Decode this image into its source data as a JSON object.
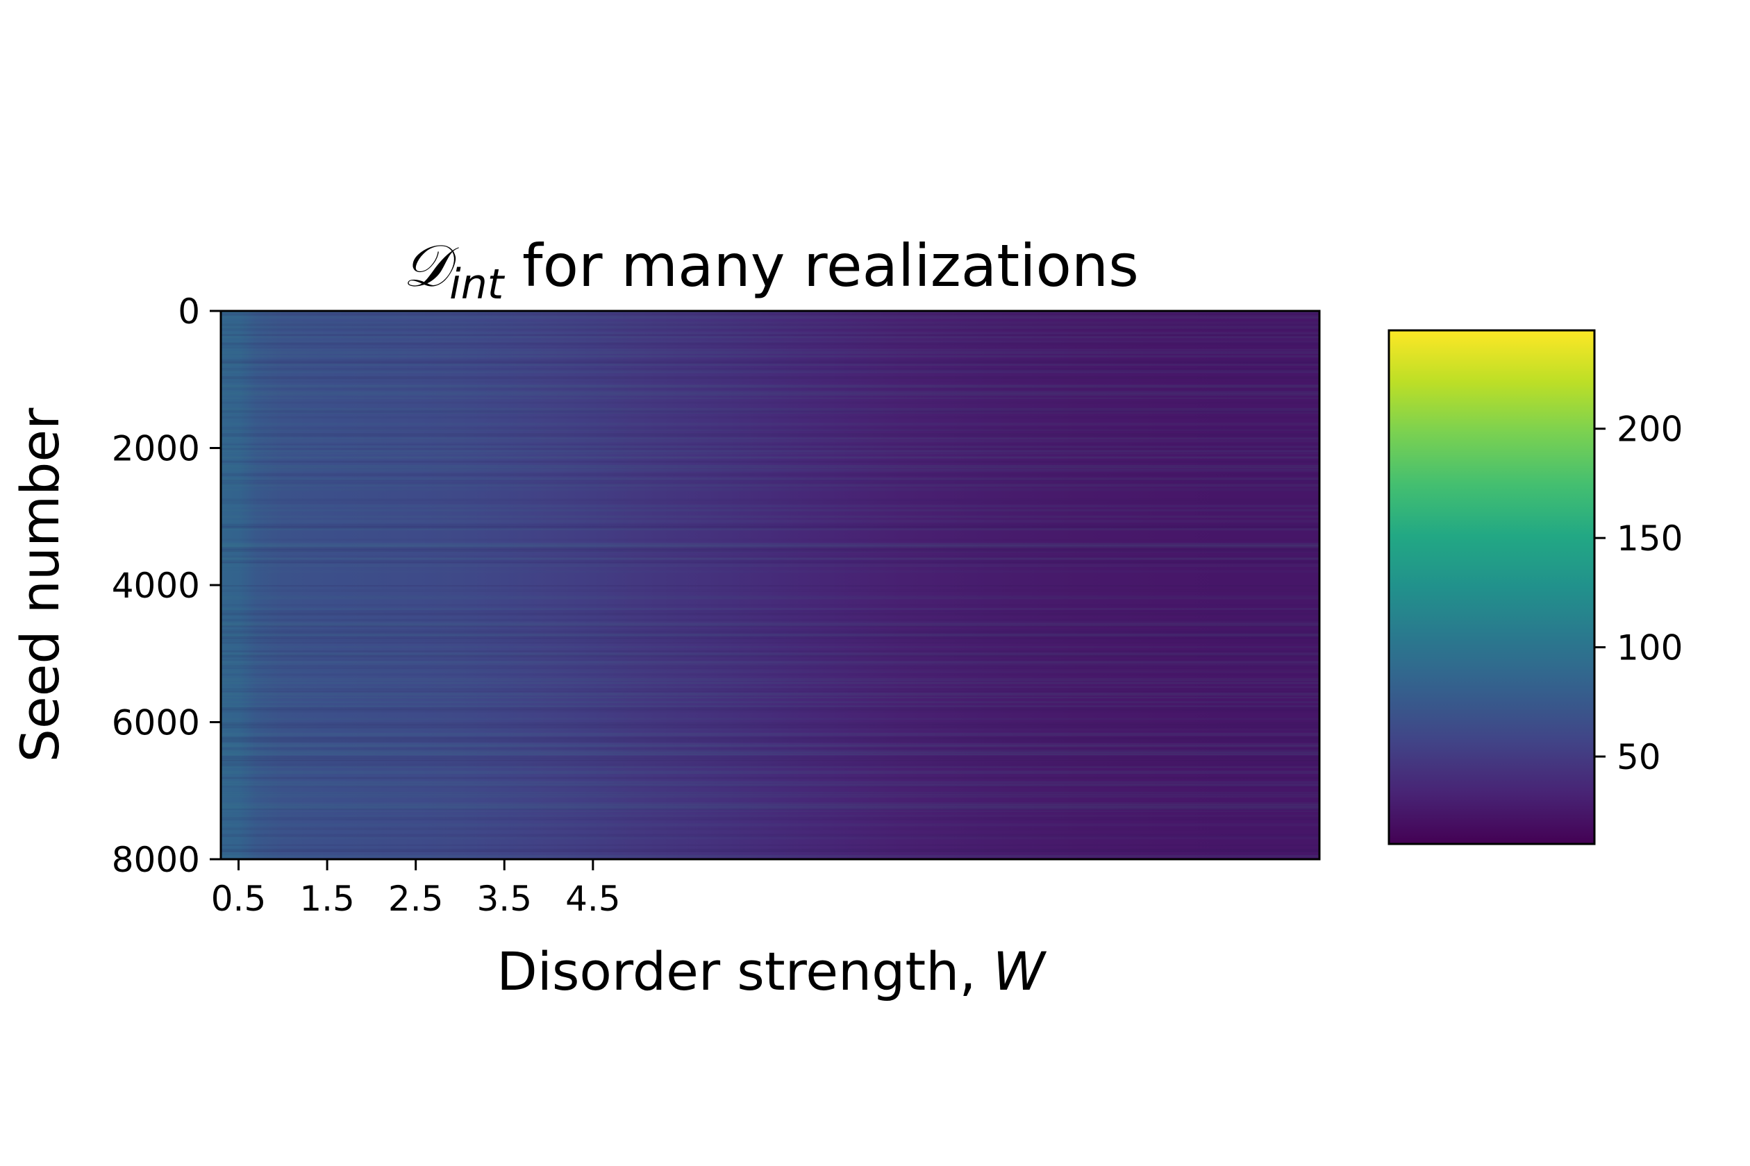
{
  "chart_data": {
    "type": "heatmap",
    "title": {
      "symbol": "𝒟",
      "subscript": "int",
      "rest": " for many realizations"
    },
    "xlabel": {
      "text": "Disorder strength, ",
      "var": "W"
    },
    "ylabel": "Seed number",
    "x_ticks": [
      0.5,
      1.5,
      2.5,
      3.5,
      4.5
    ],
    "x_tick_labels": [
      "0.5",
      "1.5",
      "2.5",
      "3.5",
      "4.5"
    ],
    "xlim": [
      0.3,
      12.7
    ],
    "y_ticks": [
      0,
      2000,
      4000,
      6000,
      8000
    ],
    "y_tick_labels": [
      "0",
      "2000",
      "4000",
      "6000",
      "8000"
    ],
    "ylim": [
      8000,
      0
    ],
    "columns_w": [
      0.3,
      0.5,
      0.7,
      1.0,
      1.5,
      2.0,
      2.5,
      3.0,
      3.5,
      4.0,
      4.5,
      5.0,
      6.0,
      7.0,
      8.0,
      9.0,
      10.0,
      11.0,
      12.0,
      12.7
    ],
    "column_values": [
      85,
      84,
      74,
      69,
      67,
      65,
      63,
      61,
      58,
      55,
      52,
      48,
      42,
      36,
      31,
      28,
      26,
      25,
      24,
      24
    ],
    "row_variation": "noisy row-to-row fluctuation across 8000 seeds",
    "colormap": "viridis",
    "colorbar": {
      "vmin": 10,
      "vmax": 245,
      "ticks": [
        50,
        100,
        150,
        200
      ],
      "tick_labels": [
        "50",
        "100",
        "150",
        "200"
      ]
    }
  }
}
